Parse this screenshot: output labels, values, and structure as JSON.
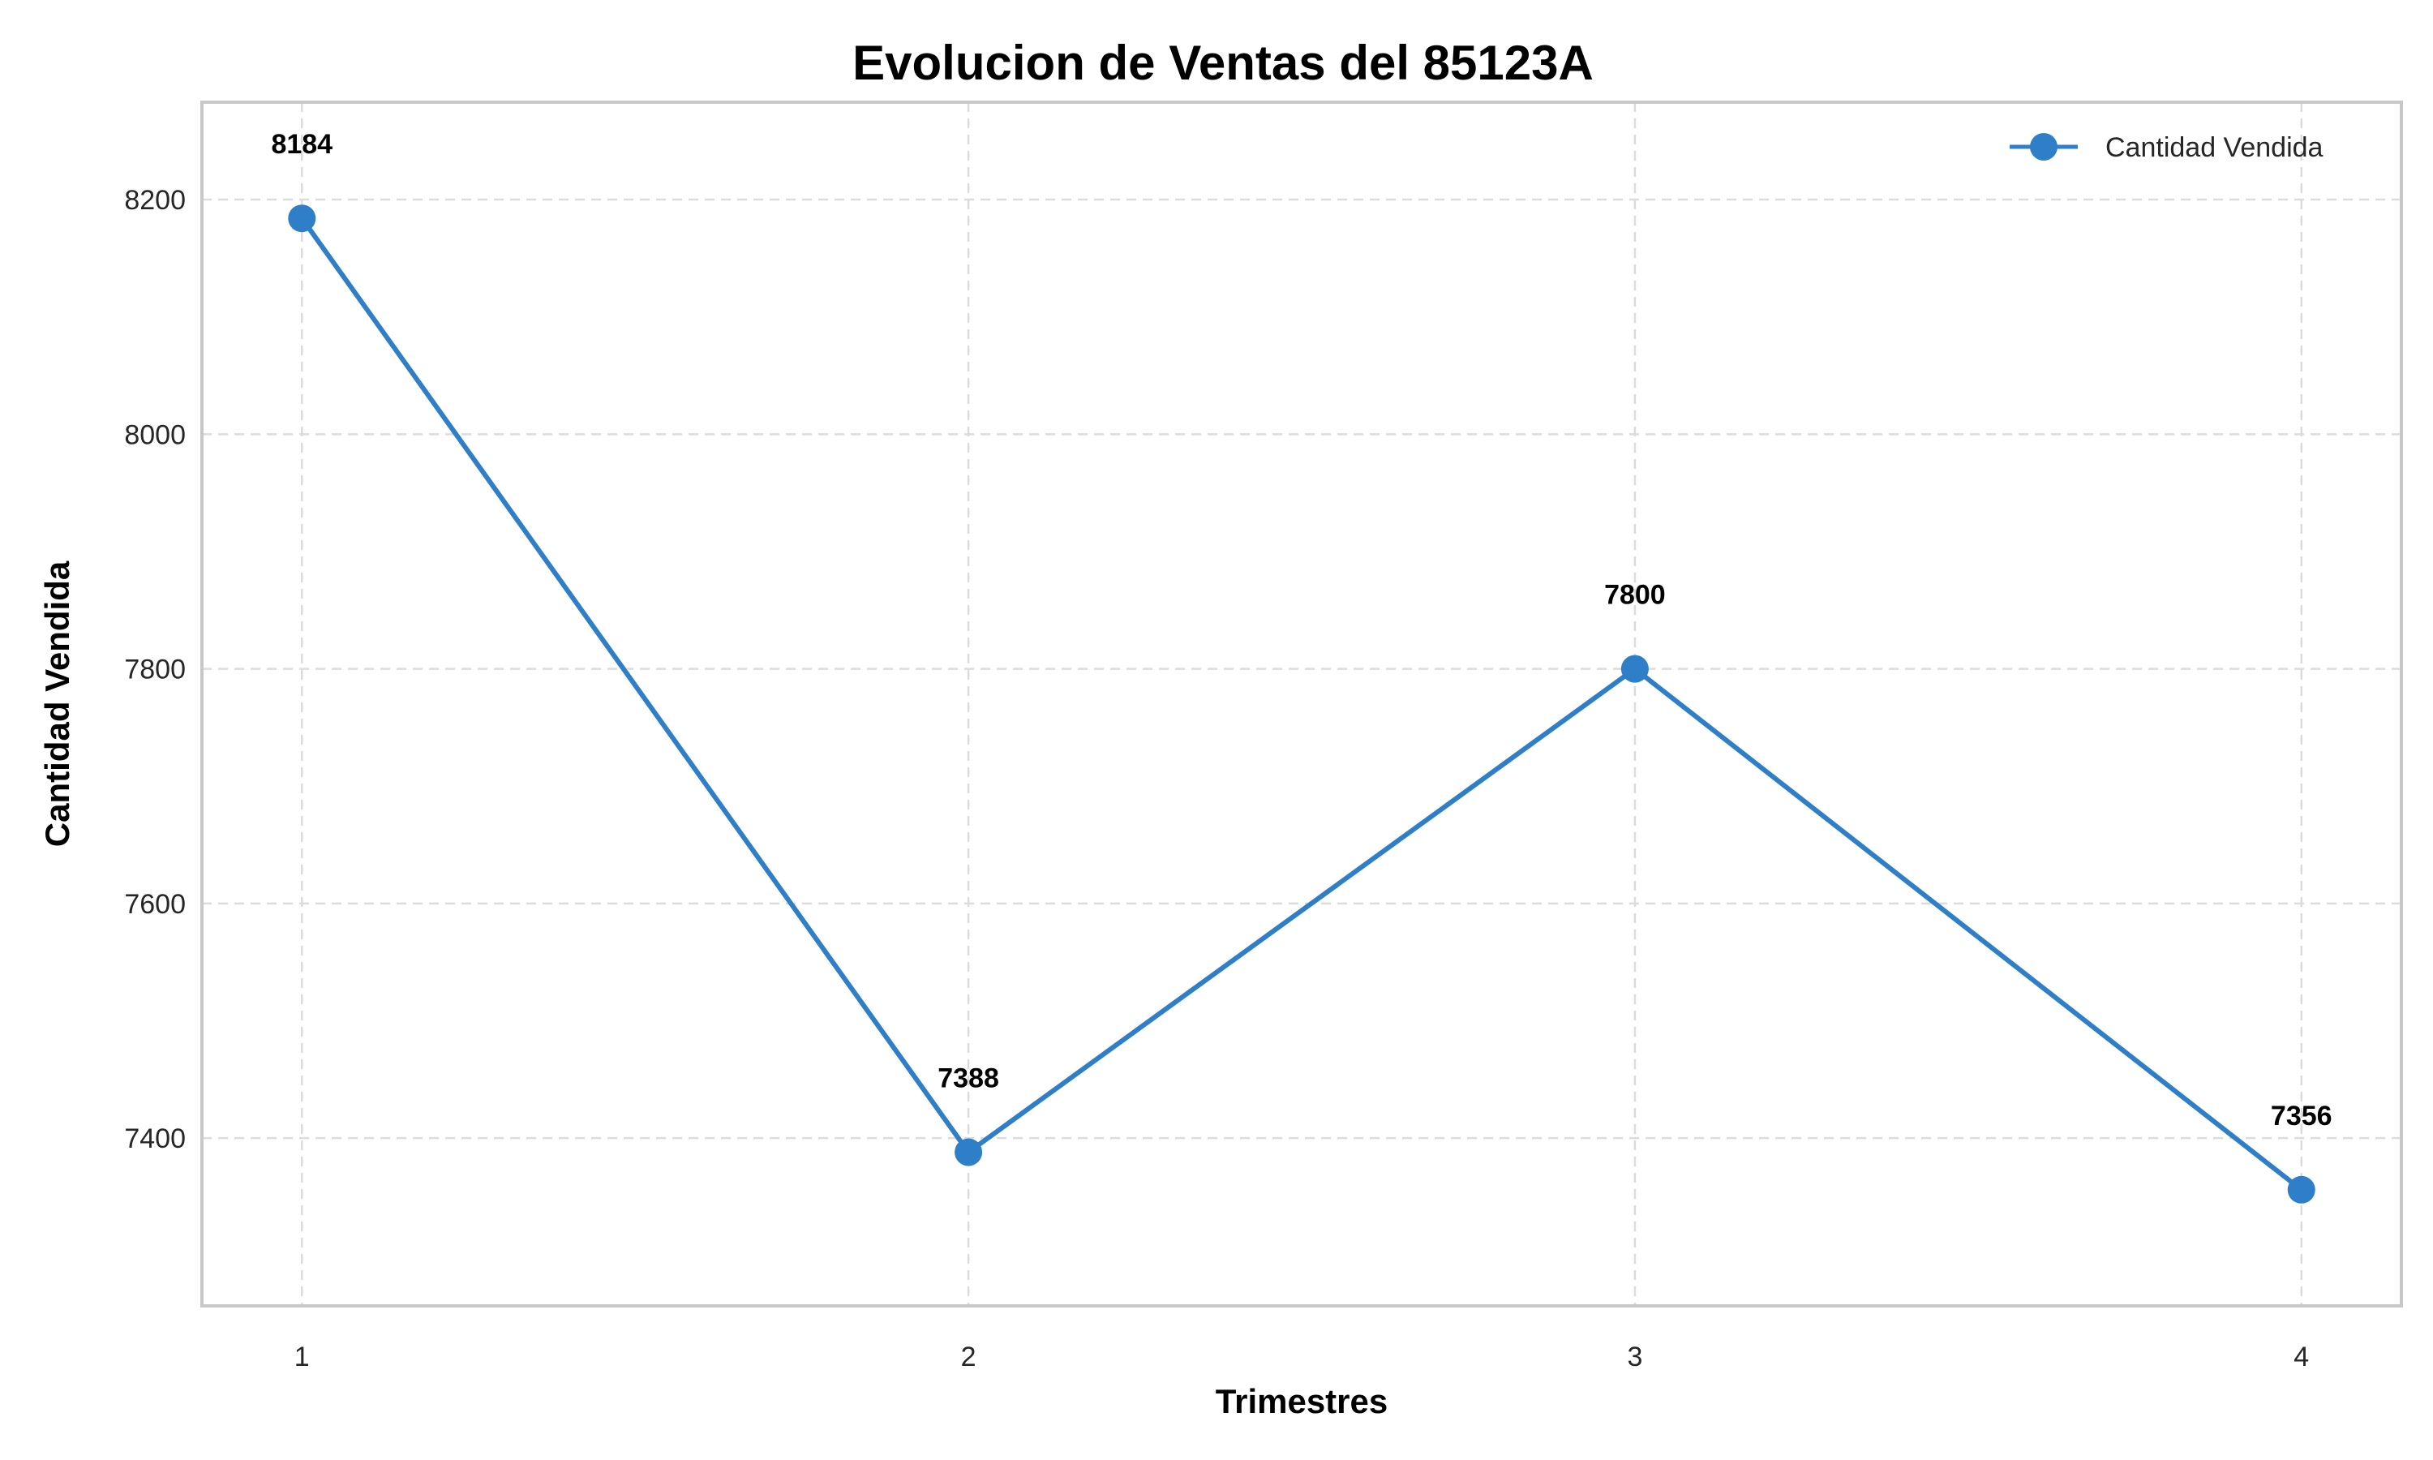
{
  "chart_data": {
    "type": "line",
    "title": "Evolucion de Ventas del 85123A",
    "xlabel": "Trimestres",
    "ylabel": "Cantidad Vendida",
    "x": [
      1,
      2,
      3,
      4
    ],
    "x_ticks": [
      "1",
      "2",
      "3",
      "4"
    ],
    "xlim": [
      0.85,
      4.15
    ],
    "ylim": [
      7257,
      8283
    ],
    "y_ticks": [
      7400,
      7600,
      7800,
      8000,
      8200
    ],
    "grid": true,
    "legend_position": "top-right",
    "series": [
      {
        "name": "Cantidad Vendida",
        "values": [
          8184,
          7388,
          7800,
          7356
        ],
        "color": "#2e7fc8",
        "marker": "circle"
      }
    ],
    "data_labels": [
      "8184",
      "7388",
      "7800",
      "7356"
    ]
  }
}
